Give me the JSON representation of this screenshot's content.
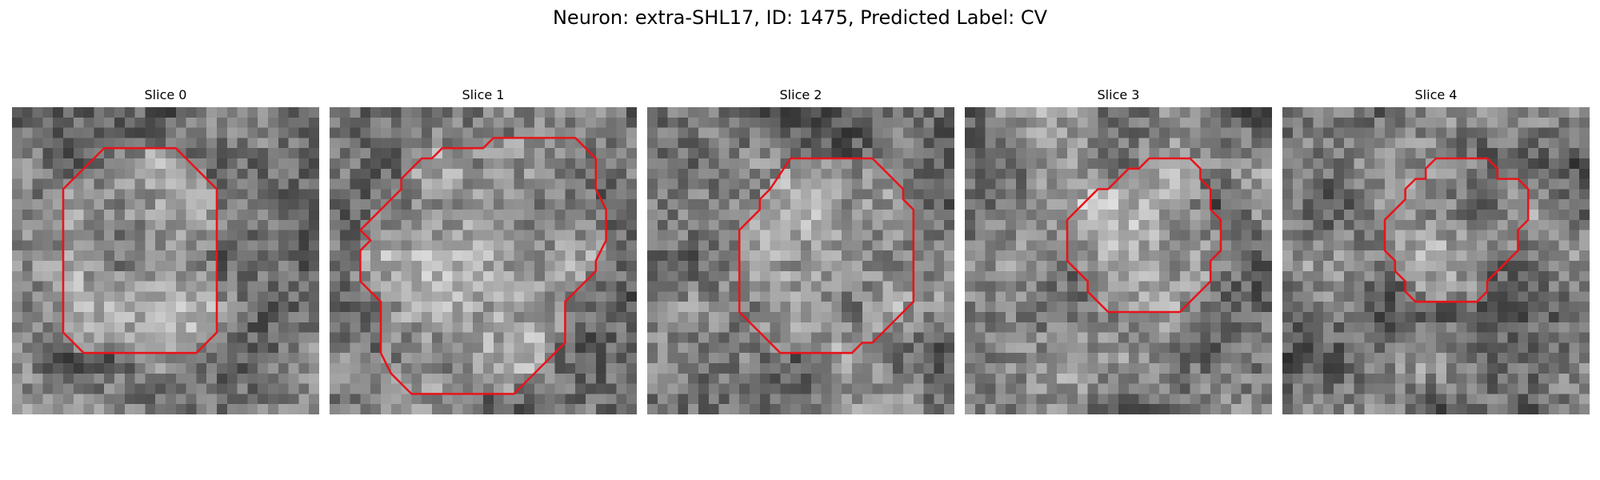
{
  "figure": {
    "title": "Neuron: extra-SHL17, ID: 1475, Predicted Label: CV",
    "outline_color": "#e8141a"
  },
  "panels": [
    {
      "title": "Slice 0",
      "seed": 11
    },
    {
      "title": "Slice 1",
      "seed": 23
    },
    {
      "title": "Slice 2",
      "seed": 37
    },
    {
      "title": "Slice 3",
      "seed": 41
    },
    {
      "title": "Slice 4",
      "seed": 59
    }
  ]
}
